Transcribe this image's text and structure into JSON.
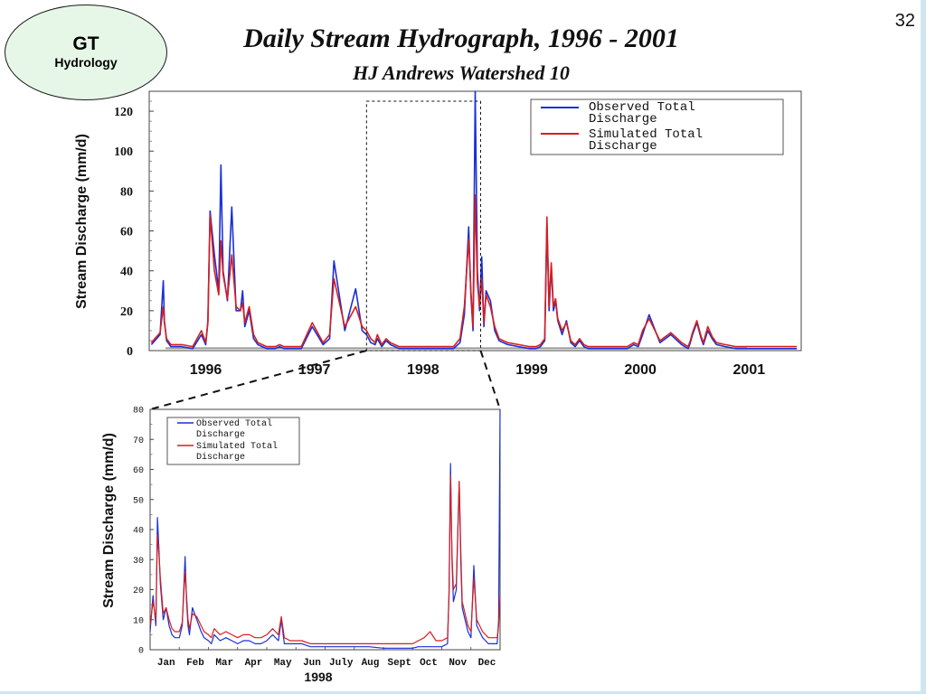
{
  "badge": {
    "title": "GT",
    "subtitle": "Hydrology"
  },
  "slide_number": "32",
  "title": "Daily Stream Hydrograph, 1996 - 2001",
  "subtitle": "HJ Andrews Watershed 10",
  "colors": {
    "observed": "#1a2fd6",
    "simulated": "#d61e1e",
    "badge_fill": "#e7f7e7",
    "side_bar": "#cde6f2"
  },
  "chart_data": [
    {
      "type": "line",
      "ylabel": "Stream Discharge (mm/d)",
      "ylim": [
        0,
        130
      ],
      "yticks": [
        0,
        20,
        40,
        60,
        80,
        100,
        120
      ],
      "x_tick_labels": [
        "1996",
        "1997",
        "1998",
        "1999",
        "2000",
        "2001"
      ],
      "legend_placement": "top-right",
      "grid": false,
      "x_range_years": [
        1995.9,
        2001.9
      ],
      "zoom_window_years": [
        1997.9,
        1998.95
      ],
      "series": [
        {
          "name": "Observed Total Discharge",
          "color": "#1a2fd6",
          "x": [
            1995.92,
            1996.0,
            1996.03,
            1996.04,
            1996.06,
            1996.1,
            1996.2,
            1996.3,
            1996.38,
            1996.42,
            1996.44,
            1996.46,
            1996.5,
            1996.54,
            1996.56,
            1996.58,
            1996.62,
            1996.66,
            1996.7,
            1996.74,
            1996.76,
            1996.78,
            1996.82,
            1996.86,
            1996.9,
            1996.94,
            1996.98,
            1997.02,
            1997.06,
            1997.1,
            1997.14,
            1997.2,
            1997.3,
            1997.4,
            1997.5,
            1997.56,
            1997.6,
            1997.7,
            1997.8,
            1997.86,
            1997.9,
            1997.94,
            1997.98,
            1998.0,
            1998.04,
            1998.08,
            1998.12,
            1998.2,
            1998.3,
            1998.4,
            1998.5,
            1998.6,
            1998.7,
            1998.76,
            1998.8,
            1998.84,
            1998.86,
            1998.88,
            1998.9,
            1998.92,
            1998.94,
            1998.96,
            1998.98,
            1999.0,
            1999.04,
            1999.08,
            1999.12,
            1999.2,
            1999.3,
            1999.4,
            1999.46,
            1999.5,
            1999.54,
            1999.56,
            1999.58,
            1999.6,
            1999.62,
            1999.64,
            1999.66,
            1999.7,
            1999.74,
            1999.78,
            1999.82,
            1999.86,
            1999.9,
            1999.94,
            2000.0,
            2000.1,
            2000.2,
            2000.3,
            2000.36,
            2000.4,
            2000.44,
            2000.5,
            2000.6,
            2000.7,
            2000.8,
            2000.86,
            2000.88,
            2000.9,
            2000.94,
            2000.98,
            2001.0,
            2001.04,
            2001.08,
            2001.12,
            2001.2,
            2001.3,
            2001.4,
            2001.5,
            2001.6,
            2001.7,
            2001.8,
            2001.86
          ],
          "y": [
            3,
            8,
            35,
            15,
            5,
            2,
            2,
            1,
            8,
            3,
            15,
            70,
            48,
            30,
            93,
            40,
            25,
            72,
            20,
            20,
            30,
            12,
            20,
            6,
            3,
            2,
            1,
            1,
            1,
            2,
            1,
            1,
            1,
            12,
            3,
            6,
            45,
            10,
            31,
            10,
            8,
            4,
            3,
            6,
            2,
            5,
            3,
            1,
            1,
            1,
            1,
            1,
            1,
            4,
            18,
            62,
            28,
            10,
            130,
            40,
            20,
            47,
            12,
            30,
            25,
            10,
            5,
            3,
            2,
            1,
            1,
            2,
            5,
            63,
            20,
            42,
            20,
            25,
            15,
            8,
            15,
            4,
            2,
            5,
            2,
            1,
            1,
            1,
            1,
            1,
            3,
            2,
            8,
            18,
            4,
            8,
            3,
            1,
            4,
            8,
            14,
            6,
            3,
            10,
            6,
            3,
            2,
            1,
            1,
            1,
            1,
            1,
            1,
            1
          ]
        },
        {
          "name": "Simulated Total Discharge",
          "color": "#d61e1e",
          "x": [
            1995.92,
            1996.0,
            1996.03,
            1996.04,
            1996.06,
            1996.1,
            1996.2,
            1996.3,
            1996.38,
            1996.42,
            1996.44,
            1996.46,
            1996.5,
            1996.54,
            1996.56,
            1996.58,
            1996.62,
            1996.66,
            1996.7,
            1996.74,
            1996.76,
            1996.78,
            1996.82,
            1996.86,
            1996.9,
            1996.94,
            1996.98,
            1997.02,
            1997.06,
            1997.1,
            1997.14,
            1997.2,
            1997.3,
            1997.4,
            1997.5,
            1997.56,
            1997.6,
            1997.7,
            1997.8,
            1997.86,
            1997.9,
            1997.94,
            1997.98,
            1998.0,
            1998.04,
            1998.08,
            1998.12,
            1998.2,
            1998.3,
            1998.4,
            1998.5,
            1998.6,
            1998.7,
            1998.76,
            1998.8,
            1998.84,
            1998.86,
            1998.88,
            1998.9,
            1998.92,
            1998.94,
            1998.96,
            1998.98,
            1999.0,
            1999.04,
            1999.08,
            1999.12,
            1999.2,
            1999.3,
            1999.4,
            1999.46,
            1999.5,
            1999.54,
            1999.56,
            1999.58,
            1999.6,
            1999.62,
            1999.64,
            1999.66,
            1999.7,
            1999.74,
            1999.78,
            1999.82,
            1999.86,
            1999.9,
            1999.94,
            2000.0,
            2000.1,
            2000.2,
            2000.3,
            2000.36,
            2000.4,
            2000.44,
            2000.5,
            2000.6,
            2000.7,
            2000.8,
            2000.86,
            2000.88,
            2000.9,
            2000.94,
            2000.98,
            2001.0,
            2001.04,
            2001.08,
            2001.12,
            2001.2,
            2001.3,
            2001.4,
            2001.5,
            2001.6,
            2001.7,
            2001.8,
            2001.86
          ],
          "y": [
            4,
            9,
            22,
            14,
            6,
            3,
            3,
            2,
            10,
            4,
            14,
            68,
            40,
            28,
            55,
            38,
            26,
            48,
            22,
            20,
            24,
            14,
            22,
            8,
            4,
            3,
            2,
            2,
            2,
            3,
            2,
            2,
            2,
            14,
            4,
            8,
            36,
            12,
            22,
            12,
            10,
            6,
            4,
            8,
            3,
            6,
            4,
            2,
            2,
            2,
            2,
            2,
            2,
            6,
            22,
            56,
            30,
            12,
            78,
            34,
            22,
            36,
            14,
            28,
            22,
            12,
            6,
            4,
            3,
            2,
            2,
            3,
            6,
            67,
            22,
            44,
            22,
            26,
            16,
            10,
            14,
            5,
            3,
            6,
            3,
            2,
            2,
            2,
            2,
            2,
            4,
            3,
            10,
            16,
            5,
            9,
            4,
            2,
            5,
            9,
            15,
            7,
            4,
            12,
            7,
            4,
            3,
            2,
            2,
            2,
            2,
            2,
            2,
            2
          ]
        }
      ]
    },
    {
      "type": "line",
      "ylabel": "Stream Discharge (mm/d)",
      "xlabel": "1998",
      "ylim": [
        0,
        80
      ],
      "yticks": [
        0,
        10,
        20,
        30,
        40,
        50,
        60,
        70,
        80
      ],
      "x_tick_labels": [
        "Jan",
        "Feb",
        "Mar",
        "Apr",
        "May",
        "Jun",
        "July",
        "Aug",
        "Sept",
        "Oct",
        "Nov",
        "Dec"
      ],
      "legend_placement": "top-left",
      "grid": false,
      "xlim": [
        0,
        12
      ],
      "series": [
        {
          "name": "Observed Total Discharge",
          "color": "#1a2fd6",
          "x": [
            0,
            0.1,
            0.2,
            0.25,
            0.3,
            0.35,
            0.45,
            0.55,
            0.65,
            0.75,
            0.85,
            1.0,
            1.1,
            1.2,
            1.25,
            1.3,
            1.35,
            1.45,
            1.6,
            1.75,
            1.85,
            2.0,
            2.1,
            2.2,
            2.4,
            2.6,
            2.8,
            3.0,
            3.2,
            3.4,
            3.6,
            3.8,
            4.0,
            4.2,
            4.4,
            4.5,
            4.6,
            4.8,
            5.0,
            5.2,
            5.5,
            6.0,
            6.5,
            7.0,
            7.5,
            8.0,
            8.5,
            9.0,
            9.2,
            9.4,
            9.6,
            9.8,
            10.0,
            10.2,
            10.25,
            10.3,
            10.35,
            10.4,
            10.5,
            10.6,
            10.65,
            10.7,
            10.8,
            10.9,
            11.0,
            11.1,
            11.2,
            11.3,
            11.4,
            11.5,
            11.6,
            11.7,
            11.8,
            11.9,
            11.95,
            12.0
          ],
          "y": [
            6,
            18,
            8,
            44,
            34,
            22,
            10,
            14,
            8,
            5,
            4,
            4,
            8,
            31,
            16,
            8,
            5,
            14,
            10,
            6,
            4,
            3,
            2,
            5,
            3,
            4,
            3,
            2,
            3,
            3,
            2,
            2,
            3,
            5,
            3,
            10,
            2,
            2,
            2,
            2,
            1,
            1,
            1,
            1,
            1,
            0.5,
            0.5,
            0.5,
            1,
            1,
            1,
            1,
            1,
            2,
            20,
            62,
            30,
            16,
            20,
            56,
            30,
            14,
            10,
            6,
            4,
            28,
            8,
            6,
            4,
            3,
            2,
            2,
            2,
            2,
            10,
            80
          ]
        },
        {
          "name": "Simulated Total Discharge",
          "color": "#d61e1e",
          "x": [
            0,
            0.1,
            0.2,
            0.25,
            0.3,
            0.35,
            0.45,
            0.55,
            0.65,
            0.75,
            0.85,
            1.0,
            1.1,
            1.2,
            1.25,
            1.3,
            1.35,
            1.45,
            1.6,
            1.75,
            1.85,
            2.0,
            2.1,
            2.2,
            2.4,
            2.6,
            2.8,
            3.0,
            3.2,
            3.4,
            3.6,
            3.8,
            4.0,
            4.2,
            4.4,
            4.5,
            4.6,
            4.8,
            5.0,
            5.2,
            5.5,
            6.0,
            6.5,
            7.0,
            7.5,
            8.0,
            8.5,
            9.0,
            9.2,
            9.4,
            9.6,
            9.8,
            10.0,
            10.2,
            10.25,
            10.3,
            10.35,
            10.4,
            10.5,
            10.6,
            10.65,
            10.7,
            10.8,
            10.9,
            11.0,
            11.1,
            11.2,
            11.3,
            11.4,
            11.5,
            11.6,
            11.7,
            11.8,
            11.9,
            11.95,
            12.0
          ],
          "y": [
            8,
            16,
            10,
            38,
            32,
            24,
            12,
            14,
            10,
            7,
            6,
            6,
            9,
            26,
            18,
            10,
            7,
            12,
            11,
            8,
            6,
            5,
            4,
            7,
            5,
            6,
            5,
            4,
            5,
            5,
            4,
            4,
            5,
            7,
            5,
            11,
            4,
            3,
            3,
            3,
            2,
            2,
            2,
            2,
            2,
            2,
            2,
            2,
            3,
            4,
            6,
            3,
            3,
            4,
            18,
            58,
            32,
            20,
            22,
            56,
            34,
            16,
            12,
            8,
            6,
            24,
            10,
            8,
            6,
            5,
            4,
            4,
            4,
            4,
            8,
            18
          ]
        }
      ]
    }
  ]
}
